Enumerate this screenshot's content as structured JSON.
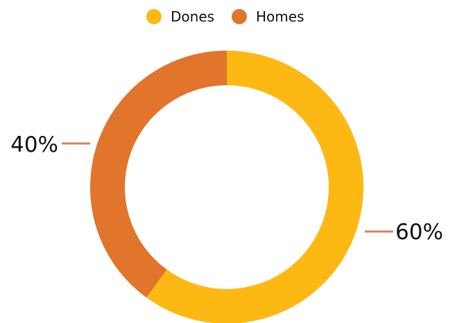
{
  "chart_data": {
    "type": "pie",
    "variant": "donut",
    "legend_position": "top",
    "series": [
      {
        "name": "Dones",
        "value": 60,
        "label": "60%",
        "color": "#FDB813"
      },
      {
        "name": "Homes",
        "value": 40,
        "label": "40%",
        "color": "#E0752B"
      }
    ],
    "leader_line_color": "#D9805A"
  }
}
